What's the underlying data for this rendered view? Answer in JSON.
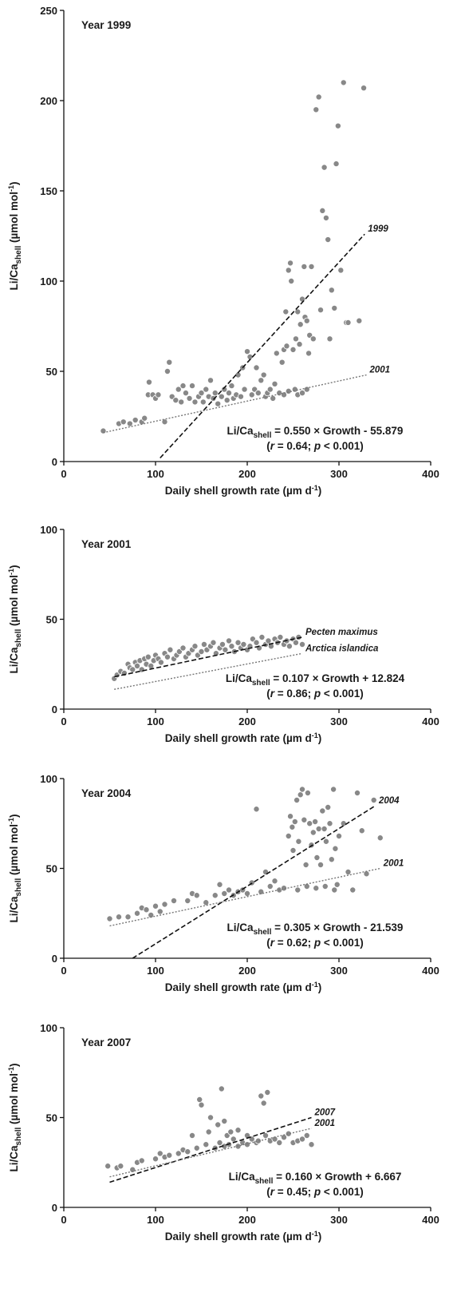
{
  "chart_data": [
    {
      "type": "scatter",
      "title": "Year 1999",
      "y_label": {
        "text": "Li/Ca",
        "subscript": "shell",
        "unit": " (µmol mol",
        "superscript": "-1",
        "unit_end": ")"
      },
      "x_label": {
        "text": "Daily shell growth rate (µm d",
        "superscript": "-1",
        "end": ")"
      },
      "xlim": [
        0,
        400
      ],
      "xticks": [
        0,
        100,
        200,
        300,
        400
      ],
      "ylim": [
        0,
        250
      ],
      "yticks": [
        0,
        50,
        100,
        150,
        200,
        250
      ],
      "points": {
        "color": "#888888",
        "x": [
          43,
          60,
          65,
          72,
          78,
          85,
          88,
          92,
          93,
          97,
          100,
          103,
          110,
          113,
          115,
          118,
          122,
          125,
          128,
          130,
          133,
          137,
          140,
          143,
          147,
          150,
          152,
          155,
          158,
          160,
          163,
          165,
          168,
          172,
          175,
          178,
          180,
          183,
          185,
          188,
          190,
          193,
          195,
          197,
          200,
          203,
          205,
          208,
          210,
          212,
          215,
          218,
          220,
          222,
          225,
          228,
          230,
          232,
          235,
          238,
          240,
          242,
          243,
          245,
          247,
          248,
          250,
          252,
          253,
          255,
          257,
          258,
          260,
          262,
          263,
          265,
          267,
          268,
          270,
          272,
          275,
          278,
          280,
          282,
          284,
          286,
          288,
          290,
          292,
          295,
          297,
          299,
          302,
          305,
          308,
          310,
          322,
          327,
          255,
          260,
          265,
          245,
          240
        ],
        "y": [
          17,
          21,
          22,
          21,
          23,
          22,
          24,
          37,
          44,
          37,
          35,
          37,
          22,
          50,
          55,
          36,
          34,
          40,
          33,
          42,
          38,
          35,
          42,
          33,
          36,
          38,
          33,
          40,
          36,
          45,
          35,
          38,
          32,
          36,
          40,
          34,
          38,
          42,
          35,
          37,
          48,
          36,
          52,
          40,
          61,
          58,
          37,
          40,
          52,
          38,
          45,
          48,
          36,
          38,
          40,
          35,
          43,
          60,
          38,
          55,
          62,
          83,
          64,
          106,
          110,
          100,
          62,
          40,
          68,
          83,
          65,
          76,
          90,
          108,
          80,
          78,
          60,
          70,
          108,
          68,
          195,
          202,
          84,
          139,
          163,
          135,
          123,
          68,
          95,
          85,
          165,
          186,
          106,
          210,
          77,
          77,
          78,
          207,
          37,
          38,
          40,
          39,
          37
        ]
      },
      "lines": [
        {
          "name": "1999",
          "style": "dashed",
          "color": "#111111",
          "x": [
            105,
            328
          ],
          "y": [
            2,
            126
          ]
        },
        {
          "name": "2001",
          "style": "dotted",
          "color": "#777777",
          "x": [
            43,
            330
          ],
          "y": [
            16,
            48
          ]
        }
      ],
      "equation": {
        "lhs": "Li/Ca",
        "lhs_subscript": "shell",
        "rhs": " = 0.550 × Growth - 55.879"
      },
      "stats": [
        "(",
        "r",
        " = 0.64; ",
        "p",
        " < 0.001)"
      ]
    },
    {
      "type": "scatter",
      "title": "Year 2001",
      "y_label": {
        "text": "Li/Ca",
        "subscript": "shell",
        "unit": " (µmol mol",
        "superscript": "-1",
        "unit_end": ")"
      },
      "x_label": {
        "text": "Daily shell growth rate (µm d",
        "superscript": "-1",
        "end": ")"
      },
      "xlim": [
        0,
        400
      ],
      "xticks": [
        0,
        100,
        200,
        300,
        400
      ],
      "ylim": [
        0,
        100
      ],
      "yticks": [
        0,
        50,
        100
      ],
      "points": {
        "color": "#888888",
        "x": [
          55,
          58,
          62,
          66,
          70,
          72,
          75,
          78,
          80,
          83,
          85,
          88,
          90,
          92,
          95,
          98,
          100,
          103,
          106,
          110,
          113,
          116,
          120,
          123,
          126,
          130,
          133,
          136,
          140,
          143,
          146,
          150,
          153,
          156,
          160,
          163,
          166,
          170,
          173,
          176,
          180,
          183,
          186,
          190,
          193,
          196,
          200,
          203,
          206,
          210,
          213,
          216,
          220,
          223,
          226,
          230,
          233,
          236,
          240,
          243,
          246,
          250,
          253,
          256,
          260
        ],
        "y": [
          17,
          19,
          21,
          20,
          25,
          23,
          22,
          26,
          24,
          27,
          22,
          28,
          25,
          29,
          24,
          27,
          30,
          28,
          26,
          31,
          29,
          33,
          28,
          30,
          32,
          34,
          29,
          31,
          33,
          35,
          30,
          32,
          36,
          33,
          35,
          37,
          31,
          34,
          36,
          33,
          38,
          35,
          32,
          37,
          34,
          36,
          33,
          35,
          39,
          37,
          34,
          40,
          36,
          38,
          35,
          39,
          37,
          40,
          36,
          38,
          35,
          39,
          37,
          40,
          36
        ]
      },
      "lines": [
        {
          "name": "Pecten maximus",
          "style": "dashed",
          "color": "#111111",
          "x": [
            55,
            260
          ],
          "y": [
            18,
            40
          ]
        },
        {
          "name": "Arctica islandica",
          "style": "dotted",
          "color": "#777777",
          "x": [
            55,
            260
          ],
          "y": [
            11,
            31
          ]
        }
      ],
      "equation": {
        "lhs": "Li/Ca",
        "lhs_subscript": "shell",
        "rhs": " = 0.107 × Growth + 12.824"
      },
      "stats": [
        "(",
        "r",
        " = 0.86; ",
        "p",
        " < 0.001)"
      ]
    },
    {
      "type": "scatter",
      "title": "Year 2004",
      "y_label": {
        "text": "Li/Ca",
        "subscript": "shell",
        "unit": " (µmol mol",
        "superscript": "-1",
        "unit_end": ")"
      },
      "x_label": {
        "text": "Daily shell growth rate (µm d",
        "superscript": "-1",
        "end": ")"
      },
      "xlim": [
        0,
        400
      ],
      "xticks": [
        0,
        100,
        200,
        300,
        400
      ],
      "ylim": [
        0,
        100
      ],
      "yticks": [
        0,
        50,
        100
      ],
      "points": {
        "color": "#888888",
        "x": [
          50,
          60,
          70,
          80,
          85,
          90,
          95,
          100,
          105,
          110,
          120,
          135,
          140,
          145,
          155,
          165,
          170,
          175,
          180,
          185,
          190,
          195,
          200,
          205,
          210,
          215,
          220,
          225,
          230,
          235,
          240,
          245,
          247,
          249,
          250,
          252,
          254,
          256,
          258,
          260,
          262,
          264,
          266,
          268,
          270,
          272,
          274,
          276,
          278,
          280,
          282,
          284,
          286,
          288,
          290,
          292,
          294,
          296,
          298,
          300,
          305,
          315,
          320,
          325,
          330,
          338,
          345,
          255,
          265,
          275,
          285,
          295,
          310
        ],
        "y": [
          22,
          23,
          23,
          25,
          28,
          27,
          24,
          29,
          26,
          30,
          32,
          32,
          36,
          35,
          31,
          35,
          41,
          36,
          38,
          35,
          37,
          38,
          36,
          42,
          83,
          37,
          48,
          40,
          43,
          38,
          39,
          68,
          79,
          73,
          60,
          76,
          88,
          65,
          91,
          94,
          77,
          52,
          92,
          75,
          63,
          70,
          76,
          56,
          72,
          52,
          82,
          72,
          65,
          84,
          75,
          55,
          94,
          61,
          41,
          68,
          75,
          38,
          92,
          71,
          47,
          88,
          67,
          38,
          40,
          39,
          40,
          38,
          48
        ]
      },
      "lines": [
        {
          "name": "2004",
          "style": "dashed",
          "color": "#111111",
          "x": [
            75,
            340
          ],
          "y": [
            0,
            85
          ]
        },
        {
          "name": "2001",
          "style": "dotted",
          "color": "#777777",
          "x": [
            50,
            345
          ],
          "y": [
            18,
            50
          ]
        }
      ],
      "equation": {
        "lhs": "Li/Ca",
        "lhs_subscript": "shell",
        "rhs": " = 0.305 × Growth - 21.539"
      },
      "stats": [
        "(",
        "r",
        " = 0.62; ",
        "p",
        " < 0.001)"
      ]
    },
    {
      "type": "scatter",
      "title": "Year 2007",
      "y_label": {
        "text": "Li/Ca",
        "subscript": "shell",
        "unit": " (µmol mol",
        "superscript": "-1",
        "unit_end": ")"
      },
      "x_label": {
        "text": "Daily shell growth rate (µm d",
        "superscript": "-1",
        "end": ")"
      },
      "xlim": [
        0,
        400
      ],
      "xticks": [
        0,
        100,
        200,
        300,
        400
      ],
      "ylim": [
        0,
        100
      ],
      "yticks": [
        0,
        50,
        100
      ],
      "points": {
        "color": "#888888",
        "x": [
          48,
          58,
          62,
          75,
          80,
          85,
          100,
          105,
          110,
          115,
          125,
          130,
          135,
          140,
          145,
          148,
          150,
          155,
          158,
          160,
          165,
          168,
          170,
          172,
          175,
          178,
          180,
          182,
          185,
          190,
          195,
          200,
          205,
          210,
          212,
          215,
          218,
          220,
          222,
          225,
          230,
          235,
          240,
          245,
          250,
          255,
          260,
          270,
          265,
          190,
          200,
          175
        ],
        "y": [
          23,
          22,
          23,
          21,
          25,
          26,
          27,
          30,
          28,
          29,
          30,
          32,
          31,
          40,
          33,
          60,
          57,
          35,
          42,
          50,
          33,
          46,
          36,
          66,
          48,
          40,
          35,
          42,
          38,
          43,
          36,
          40,
          38,
          36,
          37,
          62,
          58,
          40,
          64,
          37,
          38,
          36,
          39,
          41,
          36,
          37,
          38,
          35,
          40,
          34,
          35,
          34
        ]
      },
      "lines": [
        {
          "name": "2007",
          "style": "dashed",
          "color": "#111111",
          "x": [
            50,
            270
          ],
          "y": [
            14,
            50
          ]
        },
        {
          "name": "2001",
          "style": "dotted",
          "color": "#777777",
          "x": [
            50,
            270
          ],
          "y": [
            17,
            44
          ]
        }
      ],
      "equation": {
        "lhs": "Li/Ca",
        "lhs_subscript": "shell",
        "rhs": " = 0.160 × Growth + 6.667"
      },
      "stats": [
        "(",
        "r",
        " = 0.45; ",
        "p",
        " < 0.001)"
      ]
    }
  ]
}
